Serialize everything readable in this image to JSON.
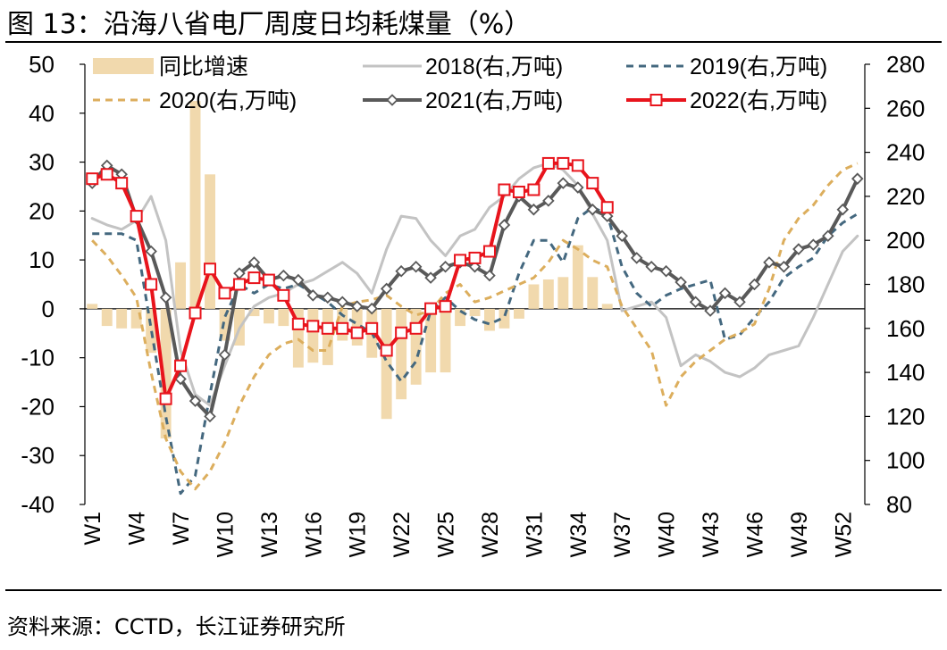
{
  "title": "图 13：沿海八省电厂周度日均耗煤量（%）",
  "source": "资料来源：CCTD，长江证券研究所",
  "chart_data": {
    "type": "bar+line",
    "left_axis": {
      "ylim": [
        -40,
        50
      ],
      "ticks": [
        "-40",
        "-30",
        "-20",
        "-10",
        "0",
        "10",
        "20",
        "30",
        "40",
        "50"
      ]
    },
    "right_axis": {
      "ylim": [
        80,
        280
      ],
      "ticks": [
        "80",
        "100",
        "120",
        "140",
        "160",
        "180",
        "200",
        "220",
        "240",
        "260",
        "280"
      ]
    },
    "x_tick_labels": [
      "W1",
      "W4",
      "W7",
      "W10",
      "W13",
      "W16",
      "W19",
      "W22",
      "W25",
      "W28",
      "W31",
      "W34",
      "W37",
      "W40",
      "W43",
      "W46",
      "W49",
      "W52"
    ],
    "x_tick_weeks": [
      1,
      4,
      7,
      10,
      13,
      16,
      19,
      22,
      25,
      28,
      31,
      34,
      37,
      40,
      43,
      46,
      49,
      52
    ],
    "weeks": 53,
    "colors": {
      "bar": "#f1d9ad",
      "s2018": "#c3c3c3",
      "s2019": "#44687f",
      "s2020": "#dcae5d",
      "s2021": "#595959",
      "s2022": "#e8141c"
    },
    "legend": [
      {
        "key": "bar",
        "label": "同比增速"
      },
      {
        "key": "s2018",
        "label": "2018(右,万吨)"
      },
      {
        "key": "s2019",
        "label": "2019(右,万吨)"
      },
      {
        "key": "s2020",
        "label": "2020(右,万吨)"
      },
      {
        "key": "s2021",
        "label": "2021(右,万吨)"
      },
      {
        "key": "s2022",
        "label": "2022(右,万吨)"
      }
    ],
    "bars": {
      "name": "同比增速",
      "axis": "left",
      "weeks": [
        1,
        2,
        3,
        4,
        5,
        6,
        7,
        8,
        9,
        10,
        11,
        12,
        13,
        14,
        15,
        16,
        17,
        18,
        19,
        20,
        21,
        22,
        23,
        24,
        25,
        26,
        27,
        28,
        29,
        30,
        31,
        32,
        33,
        34,
        35,
        36
      ],
      "values": [
        1,
        -3.5,
        -4,
        -4,
        -9,
        -26.5,
        9.5,
        42.5,
        27.5,
        -6.5,
        -7.5,
        -1.5,
        -3,
        -3.5,
        -12,
        -11,
        -11.5,
        -6.5,
        -7.5,
        -10,
        -22.5,
        -18.5,
        -15.5,
        -13,
        -13,
        -3.5,
        -1.5,
        -4.5,
        -4,
        -2,
        5,
        6,
        6.5,
        13,
        6.5,
        1
      ]
    },
    "series": [
      {
        "name": "2018(右,万吨)",
        "key": "s2018",
        "axis": "right",
        "style": "solid",
        "values": [
          210,
          207,
          205,
          209,
          220,
          200,
          150,
          130,
          125,
          143,
          160,
          170,
          174,
          176,
          180,
          182,
          186,
          190,
          185,
          176,
          196,
          211,
          210,
          200,
          193,
          202,
          205,
          215,
          220,
          228,
          233,
          235,
          232,
          225,
          212,
          200,
          168,
          170,
          172,
          165,
          143,
          148,
          145,
          140,
          138,
          142,
          148,
          150,
          152,
          165,
          180,
          195,
          202
        ]
      },
      {
        "name": "2019(右,万吨)",
        "key": "s2019",
        "axis": "right",
        "style": "dashed",
        "values": [
          203,
          203,
          203,
          200,
          160,
          120,
          85,
          93,
          130,
          165,
          180,
          176,
          180,
          178,
          180,
          176,
          172,
          166,
          162,
          158,
          145,
          136,
          145,
          168,
          174,
          168,
          164,
          162,
          165,
          185,
          200,
          200,
          190,
          210,
          215,
          212,
          188,
          176,
          170,
          175,
          178,
          180,
          182,
          155,
          157,
          165,
          172,
          183,
          188,
          192,
          202,
          208,
          212
        ]
      },
      {
        "name": "2020(右,万吨)",
        "key": "s2020",
        "axis": "right",
        "style": "dashed",
        "values": [
          200,
          193,
          184,
          174,
          140,
          110,
          95,
          87,
          95,
          108,
          125,
          138,
          148,
          153,
          155,
          150,
          150,
          170,
          172,
          173,
          175,
          170,
          166,
          168,
          176,
          180,
          172,
          174,
          177,
          180,
          183,
          190,
          200,
          196,
          191,
          188,
          170,
          160,
          150,
          125,
          138,
          145,
          150,
          155,
          158,
          162,
          178,
          200,
          210,
          216,
          225,
          232,
          235
        ]
      },
      {
        "name": "2021(右,万吨)",
        "key": "s2021",
        "axis": "right",
        "style": "marker-diamond",
        "values": [
          226,
          234,
          230,
          210,
          195,
          174,
          137,
          127,
          120,
          148,
          185,
          190,
          182,
          184,
          182,
          175,
          174,
          172,
          170,
          169,
          178,
          186,
          188,
          183,
          188,
          190,
          188,
          184,
          207,
          220,
          214,
          218,
          226,
          224,
          214,
          211,
          202,
          192,
          188,
          186,
          181,
          172,
          168,
          176,
          172,
          180,
          190,
          188,
          196,
          198,
          202,
          214,
          228
        ]
      },
      {
        "name": "2022(右,万吨)",
        "key": "s2022",
        "axis": "right",
        "style": "marker-square",
        "values": [
          228,
          230,
          226,
          211,
          180,
          128,
          143,
          167,
          187,
          176,
          180,
          183,
          182,
          175,
          162,
          161,
          160,
          160,
          158,
          160,
          150,
          158,
          160,
          169,
          170,
          191,
          192,
          195,
          223,
          222,
          223,
          235,
          235,
          234,
          226,
          215
        ]
      }
    ]
  }
}
